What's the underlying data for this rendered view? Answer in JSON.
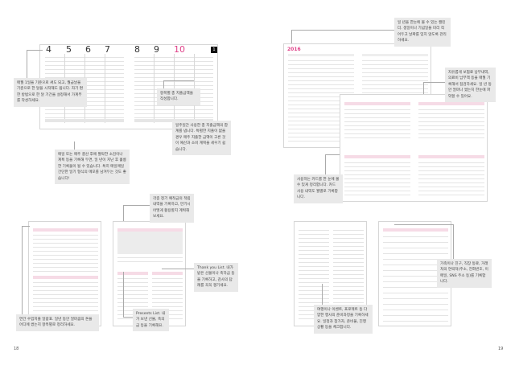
{
  "weekly": {
    "days": [
      "4",
      "5",
      "6",
      "7",
      "8",
      "9",
      "10"
    ],
    "week_badge": "1",
    "accent": "#e0438a"
  },
  "calendar": {
    "year": "2016",
    "accent": "#e0438a"
  },
  "callouts": {
    "month_start": "매월 1일을 기준으로 써도 되고, 월급날을 기준으로 한 달을 시작해도 됩니다. 자기 편한 방법으로 한 달 기간을 설정해서 가계부를 작성하세요.",
    "category_total": "항목별 총 지출금액을 작성합니다.",
    "memo": "매일 또는 매주 결산 후에 짤막한 소감이나 계획 등을 기록해 두면, 일 년이 지난 후 훌륭한 기록물이 될 수 있습니다. 특히 매일매일 간단한 일기 형식의 메모를 남겨두는 것도 좋습니다!",
    "weekly_total": "일주일간 사용한 총 지출금액의 합계를 냅니다. 특별한 지출이 없을 경우 매주 지출한 금액이 고른 것이 예산과 소비 계획을 세우기 쉽습니다.",
    "year_calendar": "일 년을 한눈에 볼 수 있는 캘린더. 생일이나 기념일을 미리 적어두고 날짜를 잊지 않도록 관리하세요.",
    "insurance": "자유롭게 보험료 납부내역, 의료비 납부액 등을 매월 기록해서 점검하세요. 일 년 동안 얼마나 썼는지 한눈에 파악할 수 있어요.",
    "cards": "사용하는 카드를 한 눈에 볼 수 있게 정리합니다. 카드 사용 내역도 월별로 기록합니다.",
    "savings": "각종 정기 예적금의 적립 내역을 기록하고, 만기시 어떻게 활용할지 계획해 보세요.",
    "thank_you": "Thank you List. 내가 받은 선물이나 축하금 등을 기록하고, 감사의 답례를 꼭꼭 챙기세요.",
    "presents": "Presents List. 내가 보낸 선물, 축의금 등을 기록해요.",
    "annual": "연간 수입지출 일람표. 일년 동안 얼마큼의 돈을 어디에 썼는지 항목별로 정리하세요.",
    "events": "여행이나 이벤트, 프로젝트 등 다양한 행사의 준비과정을 기록하세요. 일정과 참가자, 준비물, 진행 상황 등을 체크합니다.",
    "contacts": "가족이나 친구, 직장 동료, 거래처의 연락처(주소, 전화번호, 이메일, SNS 주소 등)를 기록합니다."
  },
  "page_numbers": {
    "left": "18",
    "right": "19"
  }
}
